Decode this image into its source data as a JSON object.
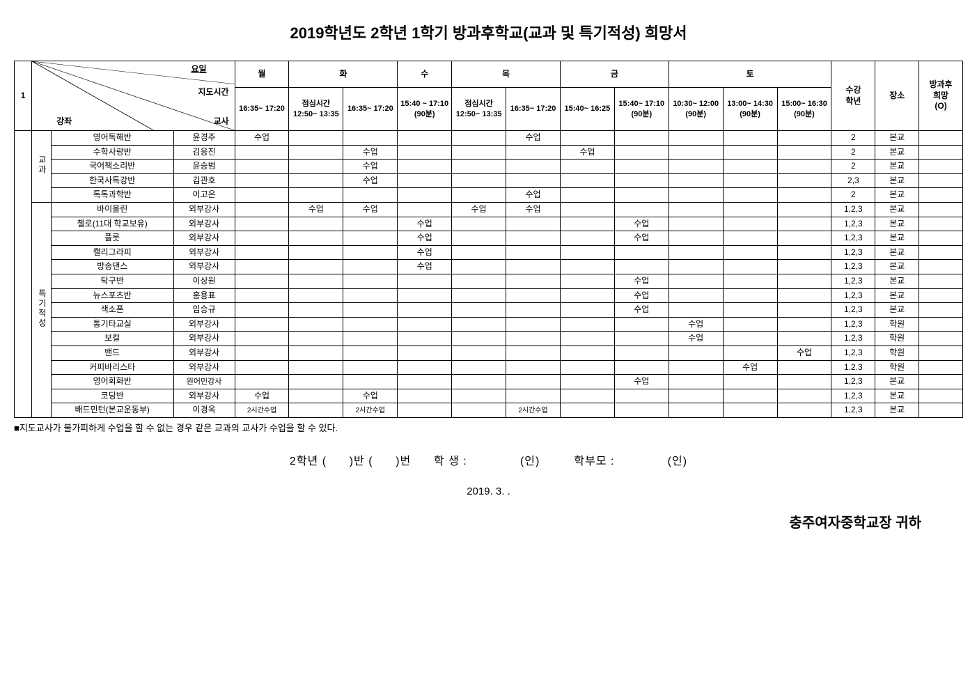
{
  "title": "2019학년도 2학년 1학기 방과후학교(교과 및 특기적성) 희망서",
  "header": {
    "idx": "1",
    "diag": {
      "day": "요일",
      "time": "지도시간",
      "course": "강좌",
      "teacher": "교사"
    },
    "days": {
      "mon": "월",
      "tue": "화",
      "wed": "수",
      "thu": "목",
      "fri": "금",
      "sat": "토"
    },
    "times": {
      "mon1": "16:35~ 17:20",
      "tue1": "점심시간 12:50~ 13:35",
      "tue2": "16:35~ 17:20",
      "wed1": "15:40 ~ 17:10 (90분)",
      "thu1": "점심시간 12:50~ 13:35",
      "thu2": "16:35~ 17:20",
      "fri1": "15:40~ 16:25",
      "fri2": "15:40~ 17:10 (90분)",
      "sat1": "10:30~ 12:00 (90분)",
      "sat2": "13:00~ 14:30 (90분)",
      "sat3": "15:00~ 16:30 (90분)"
    },
    "grade": "수강\n학년",
    "place": "장소",
    "wish": "방과후\n희망\n(O)"
  },
  "cat": {
    "a": "교과",
    "b": "특기적성"
  },
  "rows": [
    {
      "cat": "a",
      "course": "영어독해반",
      "teacher": "윤경주",
      "cells": [
        "수업",
        "",
        "",
        "",
        "",
        "수업",
        "",
        "",
        "",
        "",
        ""
      ],
      "grade": "2",
      "place": "본교"
    },
    {
      "cat": "a",
      "course": "수학사랑반",
      "teacher": "김응진",
      "cells": [
        "",
        "",
        "수업",
        "",
        "",
        "",
        "수업",
        "",
        "",
        "",
        ""
      ],
      "grade": "2",
      "place": "본교"
    },
    {
      "cat": "a",
      "course": "국어책소리반",
      "teacher": "윤승범",
      "cells": [
        "",
        "",
        "수업",
        "",
        "",
        "",
        "",
        "",
        "",
        "",
        ""
      ],
      "grade": "2",
      "place": "본교"
    },
    {
      "cat": "a",
      "course": "한국사특강반",
      "teacher": "김관호",
      "cells": [
        "",
        "",
        "수업",
        "",
        "",
        "",
        "",
        "",
        "",
        "",
        ""
      ],
      "grade": "2,3",
      "place": "본교"
    },
    {
      "cat": "a",
      "course": "톡톡과학반",
      "teacher": "이고은",
      "cells": [
        "",
        "",
        "",
        "",
        "",
        "수업",
        "",
        "",
        "",
        "",
        ""
      ],
      "grade": "2",
      "place": "본교"
    },
    {
      "cat": "b",
      "course": "바이올린",
      "teacher": "외부강사",
      "cells": [
        "",
        "수업",
        "수업",
        "",
        "수업",
        "수업",
        "",
        "",
        "",
        "",
        ""
      ],
      "grade": "1,2,3",
      "place": "본교"
    },
    {
      "cat": "b",
      "course": "첼로(11대 학교보유)",
      "teacher": "외부강사",
      "cells": [
        "",
        "",
        "",
        "수업",
        "",
        "",
        "",
        "수업",
        "",
        "",
        ""
      ],
      "grade": "1,2,3",
      "place": "본교"
    },
    {
      "cat": "b",
      "course": "플룻",
      "teacher": "외부강사",
      "cells": [
        "",
        "",
        "",
        "수업",
        "",
        "",
        "",
        "수업",
        "",
        "",
        ""
      ],
      "grade": "1,2,3",
      "place": "본교"
    },
    {
      "cat": "b",
      "course": "캘리그라피",
      "teacher": "외부강사",
      "cells": [
        "",
        "",
        "",
        "수업",
        "",
        "",
        "",
        "",
        "",
        "",
        ""
      ],
      "grade": "1,2,3",
      "place": "본교"
    },
    {
      "cat": "b",
      "course": "방송댄스",
      "teacher": "외부강사",
      "cells": [
        "",
        "",
        "",
        "수업",
        "",
        "",
        "",
        "",
        "",
        "",
        ""
      ],
      "grade": "1,2,3",
      "place": "본교"
    },
    {
      "cat": "b",
      "course": "탁구반",
      "teacher": "이상원",
      "cells": [
        "",
        "",
        "",
        "",
        "",
        "",
        "",
        "수업",
        "",
        "",
        ""
      ],
      "grade": "1,2,3",
      "place": "본교"
    },
    {
      "cat": "b",
      "course": "뉴스포츠반",
      "teacher": "홍용표",
      "cells": [
        "",
        "",
        "",
        "",
        "",
        "",
        "",
        "수업",
        "",
        "",
        ""
      ],
      "grade": "1,2,3",
      "place": "본교"
    },
    {
      "cat": "b",
      "course": "색소폰",
      "teacher": "임승규",
      "cells": [
        "",
        "",
        "",
        "",
        "",
        "",
        "",
        "수업",
        "",
        "",
        ""
      ],
      "grade": "1,2,3",
      "place": "본교"
    },
    {
      "cat": "b",
      "course": "통기타교실",
      "teacher": "외부강사",
      "cells": [
        "",
        "",
        "",
        "",
        "",
        "",
        "",
        "",
        "수업",
        "",
        ""
      ],
      "grade": "1,2,3",
      "place": "학원"
    },
    {
      "cat": "b",
      "course": "보컬",
      "teacher": "외부강사",
      "cells": [
        "",
        "",
        "",
        "",
        "",
        "",
        "",
        "",
        "수업",
        "",
        ""
      ],
      "grade": "1,2,3",
      "place": "학원"
    },
    {
      "cat": "b",
      "course": "밴드",
      "teacher": "외부강사",
      "cells": [
        "",
        "",
        "",
        "",
        "",
        "",
        "",
        "",
        "",
        "",
        "수업"
      ],
      "grade": "1,2,3",
      "place": "학원"
    },
    {
      "cat": "b",
      "course": "커피바리스타",
      "teacher": "외부강사",
      "cells": [
        "",
        "",
        "",
        "",
        "",
        "",
        "",
        "",
        "",
        "수업",
        ""
      ],
      "grade": "1.2.3",
      "place": "학원"
    },
    {
      "cat": "b",
      "course": "영어회화반",
      "teacher": "원어민강사",
      "cells": [
        "",
        "",
        "",
        "",
        "",
        "",
        "",
        "수업",
        "",
        "",
        ""
      ],
      "grade": "1,2,3",
      "place": "본교"
    },
    {
      "cat": "b",
      "course": "코딩반",
      "teacher": "외부강사",
      "cells": [
        "수업",
        "",
        "수업",
        "",
        "",
        "",
        "",
        "",
        "",
        "",
        ""
      ],
      "grade": "1,2,3",
      "place": "본교"
    },
    {
      "cat": "b",
      "course": "배드민턴(본교운동부)",
      "teacher": "이경옥",
      "cells": [
        "2시간수업",
        "",
        "2시간수업",
        "",
        "",
        "2시간수업",
        "",
        "",
        "",
        "",
        ""
      ],
      "grade": "1,2,3",
      "place": "본교",
      "small": true
    }
  ],
  "note": "■지도교사가 불가피하게 수업을 할 수 없는 경우 같은 교과의 교사가 수업을 할 수 있다.",
  "sig": {
    "grade": "2학년 (",
    "class": ")반 (",
    "num": ")번",
    "student": "학 생 :",
    "seal1": "(인)",
    "parent": "학부모 :",
    "seal2": "(인)"
  },
  "date": "2019.  3.   .",
  "principal": "충주여자중학교장 귀하"
}
